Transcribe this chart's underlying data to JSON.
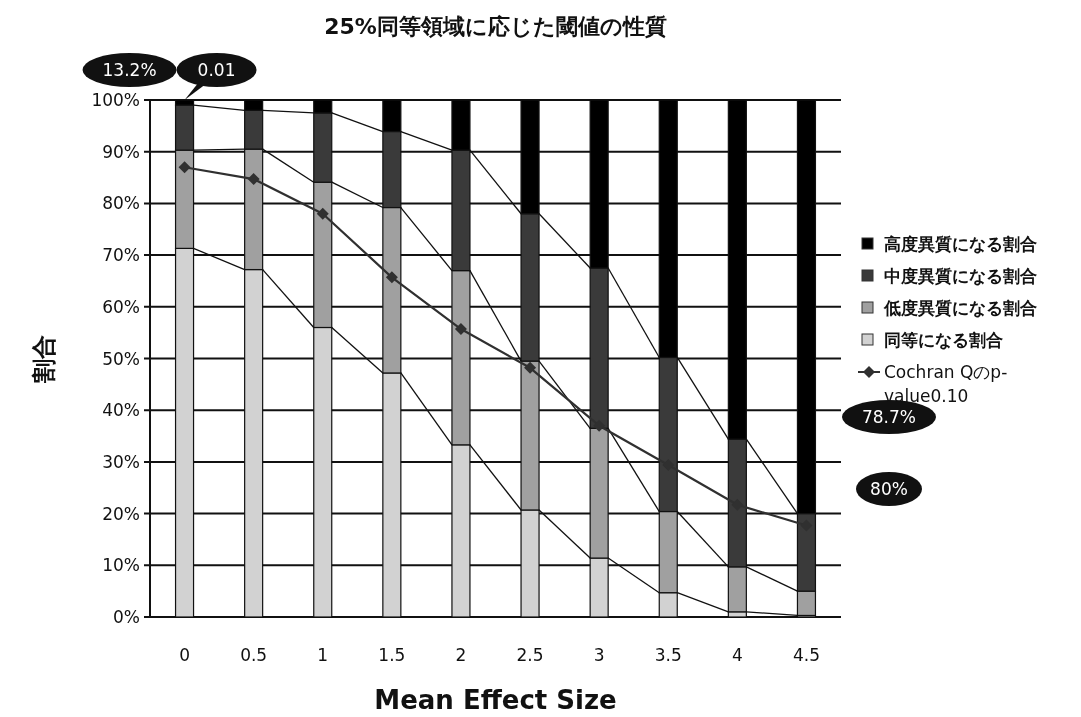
{
  "chart_data": {
    "type": "bar",
    "stacked": true,
    "title": "25%同等領域に応じた閾値の性質",
    "xlabel": "Mean Effect Size",
    "ylabel": "割合",
    "categories": [
      "0",
      "0.5",
      "1",
      "1.5",
      "2",
      "2.5",
      "3",
      "3.5",
      "4",
      "4.5"
    ],
    "ylim": [
      0,
      100
    ],
    "yticks": [
      {
        "value": 0,
        "label": "0%"
      },
      {
        "value": 10,
        "label": "10%"
      },
      {
        "value": 20,
        "label": "20%"
      },
      {
        "value": 30,
        "label": "30%"
      },
      {
        "value": 40,
        "label": "40%"
      },
      {
        "value": 50,
        "label": "50%"
      },
      {
        "value": 60,
        "label": "60%"
      },
      {
        "value": 70,
        "label": "70%"
      },
      {
        "value": 80,
        "label": "80%"
      },
      {
        "value": 90,
        "label": "90%"
      },
      {
        "value": 100,
        "label": "100%"
      }
    ],
    "grid": "y",
    "legend": "right",
    "series": [
      {
        "name": "同等になる割合",
        "color": "#d2d2d2",
        "values": [
          71.3,
          67.2,
          56,
          47.2,
          33.3,
          20.7,
          11.4,
          4.7,
          1,
          0.3
        ]
      },
      {
        "name": "低度異質になる割合",
        "color": "#a0a0a0",
        "values": [
          19,
          23.3,
          28.1,
          32,
          33.7,
          28.8,
          25.1,
          15.7,
          8.7,
          4.7
        ]
      },
      {
        "name": "中度異質になる割合",
        "color": "#3a3a3a",
        "values": [
          8.7,
          7.5,
          13.4,
          14.7,
          23.3,
          28.5,
          31,
          29.8,
          24.7,
          15
        ]
      },
      {
        "name": "高度異質になる割合",
        "color": "#000000",
        "values": [
          1,
          2,
          2.5,
          6.1,
          9.7,
          22,
          32.5,
          49.8,
          65.6,
          80
        ]
      },
      {
        "name": "Cochran Qのp-value0.10",
        "type": "line",
        "color": "#303030",
        "marker": "diamond",
        "values": [
          87,
          84.7,
          78,
          65.7,
          55.7,
          48.2,
          37,
          29.4,
          21.7,
          17.7
        ]
      }
    ],
    "annotations": [
      {
        "text": "0.01",
        "x": "0",
        "y": 100
      },
      "13.2%",
      "78.7%",
      "80%"
    ]
  }
}
